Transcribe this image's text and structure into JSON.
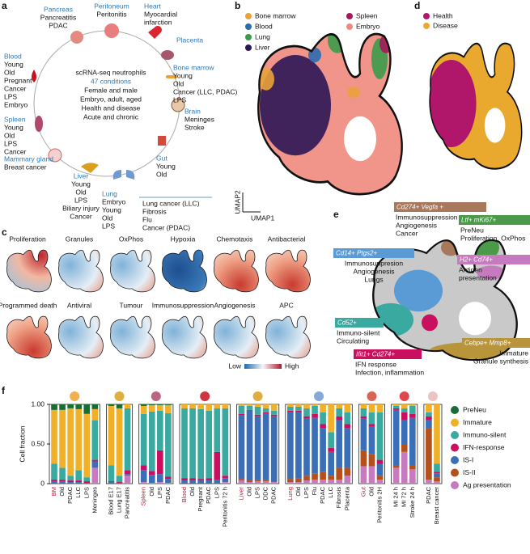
{
  "panel_labels": [
    "a",
    "b",
    "c",
    "d",
    "e",
    "f"
  ],
  "panel_a": {
    "center": [
      "scRNA-seq neutrophils",
      "47 conditions",
      "Female and male",
      "Embryo, adult, aged",
      "Health and disease",
      "Acute and chronic"
    ],
    "organs": [
      {
        "name": "Pancreas",
        "conditions": [
          "Pancreatitis",
          "PDAC"
        ]
      },
      {
        "name": "Peritoneum",
        "conditions": [
          "Peritonitis"
        ]
      },
      {
        "name": "Heart",
        "conditions": [
          "Myocardial",
          "infarction"
        ]
      },
      {
        "name": "Placenta",
        "conditions": []
      },
      {
        "name": "Bone marrow",
        "conditions": [
          "Young",
          "Old",
          "Cancer (LLC, PDAC)",
          "LPS"
        ]
      },
      {
        "name": "Brain",
        "conditions": [
          "Meninges",
          "Stroke"
        ]
      },
      {
        "name": "Gut",
        "conditions": [
          "Young",
          "Old"
        ]
      },
      {
        "name": "Lung",
        "conditions": [
          "Embryo",
          "Young",
          "Old",
          "LPS"
        ]
      },
      {
        "conditions": [
          "Lung cancer (LLC)",
          "Fibrosis",
          "Flu",
          "Cancer (PDAC)"
        ]
      },
      {
        "name": "Liver",
        "conditions": [
          "Young",
          "Old",
          "LPS",
          "Biliary injury",
          "Cancer"
        ]
      },
      {
        "name": "Mammary gland",
        "conditions": [
          "Breast cancer"
        ]
      },
      {
        "name": "Spleen",
        "conditions": [
          "Young",
          "Old",
          "LPS",
          "Cancer"
        ]
      },
      {
        "name": "Blood",
        "conditions": [
          "Young",
          "Old",
          "Pregnant",
          "Cancer",
          "LPS",
          "Embryo"
        ]
      }
    ]
  },
  "panel_b": {
    "legend": [
      {
        "name": "Bone marrow",
        "color": "#e8a23a"
      },
      {
        "name": "Blood",
        "color": "#2b6cb0"
      },
      {
        "name": "Lung",
        "color": "#3b9a4a"
      },
      {
        "name": "Liver",
        "color": "#2c1654"
      },
      {
        "name": "Spleen",
        "color": "#a3195b"
      },
      {
        "name": "Embryo",
        "color": "#f08a7e"
      }
    ],
    "x_label": "UMAP1",
    "y_label": "UMAP2"
  },
  "panel_c": {
    "titles": [
      "Proliferation",
      "Granules",
      "OxPhos",
      "Hypoxia",
      "Chemotaxis",
      "Antibacterial",
      "Programmed death",
      "Antiviral",
      "Tumour",
      "Immunosuppression",
      "Angiogenesis",
      "APC"
    ],
    "low": "Low",
    "high": "High"
  },
  "panel_d": {
    "legend": [
      {
        "name": "Health",
        "color": "#b0176b"
      },
      {
        "name": "Disease",
        "color": "#e9a92f"
      }
    ]
  },
  "panel_e": {
    "clusters": [
      {
        "marker": "Cd274+ Vegfa +",
        "lines": [
          "Immunosuppression",
          "Angiogenesis",
          "Cancer"
        ],
        "color": "#a8785c"
      },
      {
        "marker": "Ltf+ mKi67+",
        "lines": [
          "PreNeu",
          "Proliferation, OxPhos"
        ],
        "color": "#4a9a4a"
      },
      {
        "marker": "Cd14+ Ptgs2+",
        "lines": [
          "Immunosuppresion",
          "Angiogenesis",
          "Lungs"
        ],
        "color": "#5b9bd5"
      },
      {
        "marker": "H2+ Cd74+",
        "lines": [
          "Antigen",
          "presentation"
        ],
        "color": "#c77bbf"
      },
      {
        "marker": "Cd52+",
        "lines": [
          "Immuno-silent",
          "Circulating"
        ],
        "color": "#3aa9a0"
      },
      {
        "marker": "Ifit1+ Cd274+",
        "lines": [
          "IFN response",
          "Infection, inflammation"
        ],
        "color": "#c8105e"
      },
      {
        "marker": "Cebpe+ Mmp8+",
        "lines": [
          "Immature",
          "Granule synthesis"
        ],
        "color": "#b8943a"
      }
    ]
  },
  "chart_data": {
    "type": "stacked_bar",
    "y_label": "Cell fraction",
    "ylim": [
      0,
      1
    ],
    "yticks": [
      0,
      {
        "value": 0.5,
        "label": "0.50"
      },
      {
        "value": 1,
        "label": "1.00"
      }
    ],
    "categories": [
      "BM",
      "Old",
      "PDAC",
      "LLC",
      "LPS",
      "Meninges",
      null,
      "Blood E17",
      "Lung E17",
      "Pancreatitis",
      null,
      "Spleen",
      "Old",
      "LPS",
      "PDAC",
      null,
      "Blood",
      "Old",
      "Pregnant",
      "PDAC",
      "LPS",
      "Peritonitis 72 h",
      null,
      "Liver",
      "Old",
      "LPS",
      "DDC",
      "PDAC",
      null,
      "Lung",
      "Old",
      "LPS",
      "Flu",
      "PDAC",
      "LLC",
      "Fibrosis",
      "Placenta",
      null,
      "Gut",
      "Old",
      "Peritonitis 2H",
      null,
      "MI 24 h",
      "MI 72 h",
      "Stroke 24 h",
      null,
      "PDAC",
      "Breast cancer"
    ],
    "category_colors": [
      "#c8102e",
      null,
      null,
      null,
      null,
      null,
      null,
      null,
      null,
      null,
      null,
      "#c8102e",
      null,
      null,
      null,
      null,
      "#c8102e",
      null,
      null,
      null,
      null,
      null,
      null,
      "#c8102e",
      null,
      null,
      null,
      null,
      null,
      "#c8102e",
      null,
      null,
      null,
      null,
      null,
      null,
      null,
      null,
      "#c8102e",
      null,
      null,
      null,
      null,
      null,
      null,
      null,
      null,
      null
    ],
    "series": [
      {
        "name": "PreNeu",
        "color": "#1a6b35",
        "values": [
          0.07,
          0.07,
          0.05,
          0.06,
          0.12,
          0.06,
          null,
          0.02,
          0.05,
          0,
          null,
          0.02,
          0.01,
          0.01,
          0.01,
          null,
          0,
          0,
          0,
          0,
          0,
          0,
          null,
          0,
          0,
          0,
          0,
          0,
          null,
          0,
          0,
          0,
          0,
          0,
          0,
          0,
          0,
          null,
          0,
          0,
          0,
          null,
          0,
          0,
          0,
          null,
          0,
          0
        ]
      },
      {
        "name": "Immature",
        "color": "#f0b02a",
        "values": [
          0.68,
          0.73,
          0.85,
          0.77,
          0.8,
          0.14,
          null,
          0.75,
          0.85,
          0.05,
          null,
          0.1,
          0.08,
          0.07,
          0.1,
          null,
          0.05,
          0.05,
          0.06,
          0.08,
          0.05,
          0.05,
          null,
          0.02,
          0.02,
          0.03,
          0.05,
          0.08,
          null,
          0.03,
          0.03,
          0.05,
          0.02,
          0.1,
          0.35,
          0.05,
          0.1,
          null,
          0.05,
          0.1,
          0.1,
          null,
          0.02,
          0.05,
          0.02,
          null,
          0.1,
          0.75
        ]
      },
      {
        "name": "Immuno-silent",
        "color": "#3aa9a0",
        "values": [
          0.2,
          0.15,
          0.06,
          0.13,
          0.05,
          0.5,
          null,
          0.2,
          0.08,
          0.78,
          null,
          0.65,
          0.75,
          0.5,
          0.8,
          null,
          0.88,
          0.88,
          0.88,
          0.85,
          0.55,
          0.85,
          null,
          0.1,
          0.05,
          0.1,
          0.05,
          0.05,
          null,
          0.05,
          0.05,
          0.1,
          0.1,
          0.15,
          0.2,
          0.1,
          0.15,
          null,
          0.1,
          0.15,
          0.6,
          null,
          0.03,
          0.05,
          0.1,
          null,
          0.05,
          0.1
        ]
      },
      {
        "name": "IFN-response",
        "color": "#c8105e",
        "values": [
          0.02,
          0.02,
          0.02,
          0.02,
          0.02,
          0.02,
          null,
          0.01,
          0.01,
          0.05,
          null,
          0.06,
          0.05,
          0.3,
          0.03,
          null,
          0.03,
          0.03,
          0.02,
          0.03,
          0.35,
          0.03,
          null,
          0.02,
          0.01,
          0.02,
          0.02,
          0.02,
          null,
          0.02,
          0.02,
          0.03,
          0.05,
          0.05,
          0.05,
          0.05,
          0.05,
          null,
          0.03,
          0.03,
          0.05,
          null,
          0.02,
          0.1,
          0.05,
          null,
          0.05,
          0.02
        ]
      },
      {
        "name": "IS-I",
        "color": "#3a6fb8",
        "values": [
          0.03,
          0.03,
          0.02,
          0.02,
          0.01,
          0.08,
          null,
          0.02,
          0.01,
          0.02,
          null,
          0.15,
          0.1,
          0.1,
          0.05,
          null,
          0.04,
          0.04,
          0.04,
          0.04,
          0.05,
          0.05,
          null,
          0.8,
          0.88,
          0.8,
          0.83,
          0.82,
          null,
          0.84,
          0.83,
          0.72,
          0.7,
          0.55,
          0.3,
          0.6,
          0.5,
          null,
          0.4,
          0.35,
          0.15,
          null,
          0.7,
          0.3,
          0.6,
          null,
          0.1,
          0.05
        ]
      },
      {
        "name": "IS-II",
        "color": "#b5501c",
        "values": [
          0,
          0,
          0,
          0,
          0,
          0,
          null,
          0,
          0,
          0,
          null,
          0,
          0,
          0,
          0,
          null,
          0,
          0,
          0,
          0,
          0,
          0,
          null,
          0.02,
          0.02,
          0.02,
          0.02,
          0.01,
          null,
          0.04,
          0.05,
          0.06,
          0.08,
          0.1,
          0.05,
          0.15,
          0.1,
          null,
          0.2,
          0.15,
          0.05,
          null,
          0.03,
          0.1,
          0.05,
          null,
          0.65,
          0.05
        ]
      },
      {
        "name": "Ag presentation",
        "color": "#c77bbf",
        "values": [
          0,
          0,
          0,
          0,
          0,
          0.2,
          null,
          0,
          0,
          0.1,
          null,
          0.02,
          0.01,
          0.02,
          0.01,
          null,
          0,
          0,
          0,
          0,
          0,
          0.02,
          null,
          0.04,
          0.02,
          0.03,
          0.03,
          0.02,
          null,
          0.02,
          0.02,
          0.04,
          0.05,
          0.05,
          0.05,
          0.05,
          0.1,
          null,
          0.22,
          0.22,
          0.05,
          null,
          0.2,
          0.4,
          0.18,
          null,
          0.05,
          0.03
        ]
      }
    ]
  }
}
